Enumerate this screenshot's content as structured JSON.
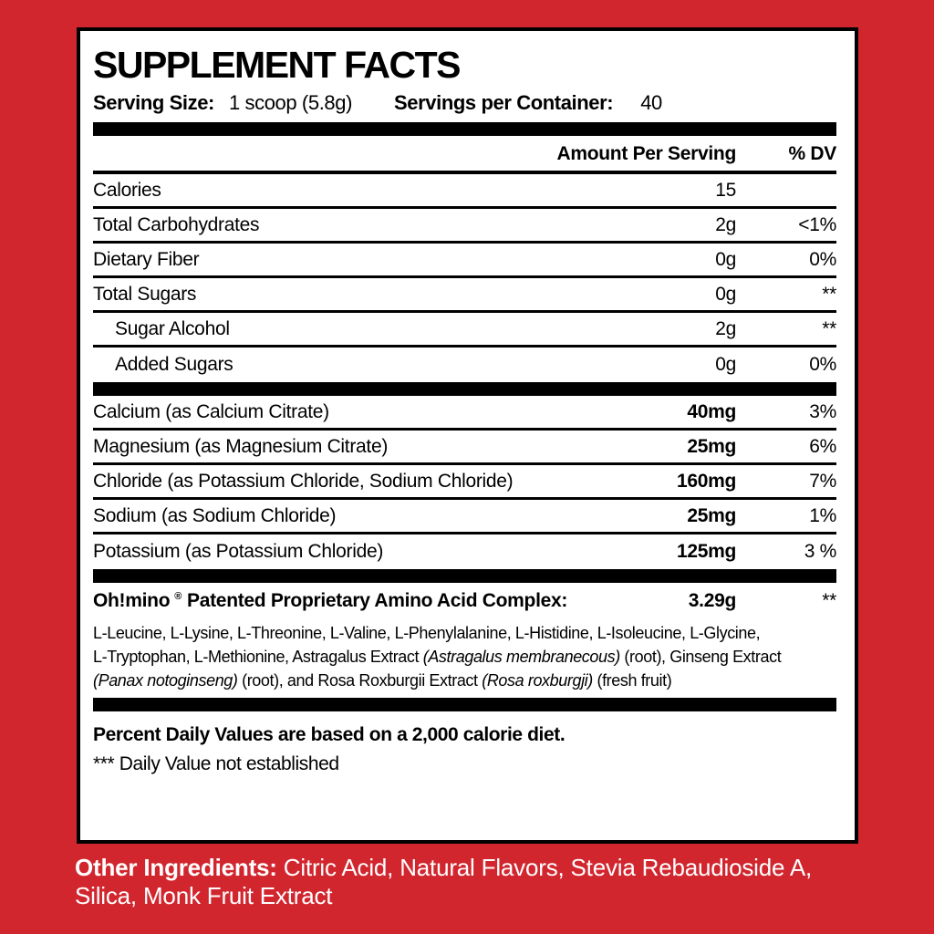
{
  "colors": {
    "background": "#d2262f",
    "panel": "#ffffff",
    "ink": "#000000",
    "inverse_text": "#ffffff"
  },
  "panel": {
    "title": "SUPPLEMENT FACTS",
    "serving": {
      "size_label": "Serving Size:",
      "size_value": "1 scoop (5.8g)",
      "count_label": "Servings per Container:",
      "count_value": "40"
    },
    "columns": {
      "amount": "Amount Per Serving",
      "dv": "% DV"
    },
    "basic_rows": [
      {
        "name": "Calories",
        "amount": "15",
        "dv": "",
        "indent": false,
        "bold_amount": false
      },
      {
        "name": "Total Carbohydrates",
        "amount": "2g",
        "dv": "<1%",
        "indent": false,
        "bold_amount": false
      },
      {
        "name": "Dietary Fiber",
        "amount": "0g",
        "dv": "0%",
        "indent": false,
        "bold_amount": false
      },
      {
        "name": "Total Sugars",
        "amount": "0g",
        "dv": "**",
        "indent": false,
        "bold_amount": false
      },
      {
        "name": "Sugar Alcohol",
        "amount": "2g",
        "dv": "**",
        "indent": true,
        "bold_amount": false
      },
      {
        "name": "Added Sugars",
        "amount": "0g",
        "dv": "0%",
        "indent": true,
        "bold_amount": false
      }
    ],
    "mineral_rows": [
      {
        "name": "Calcium (as Calcium Citrate)",
        "amount": "40mg",
        "dv": "3%",
        "indent": false,
        "bold_amount": true
      },
      {
        "name": "Magnesium (as Magnesium Citrate)",
        "amount": "25mg",
        "dv": "6%",
        "indent": false,
        "bold_amount": true
      },
      {
        "name": "Chloride (as Potassium Chloride, Sodium Chloride)",
        "amount": "160mg",
        "dv": "7%",
        "indent": false,
        "bold_amount": true
      },
      {
        "name": "Sodium (as Sodium Chloride)",
        "amount": "25mg",
        "dv": "1%",
        "indent": false,
        "bold_amount": true
      },
      {
        "name": "Potassium (as Potassium Chloride)",
        "amount": "125mg",
        "dv": "3 %",
        "indent": false,
        "bold_amount": true
      }
    ],
    "complex": {
      "brand": "Oh!mino",
      "reg_mark": "®",
      "title": "Patented Proprietary Amino Acid Complex:",
      "amount": "3.29g",
      "dv": "**",
      "ingredient_lines": [
        [
          {
            "text": "L-Leucine, L-Lysine, L-Threonine, L-Valine, L-Phenylalanine, L-Histidine, L-Isoleucine, L-Glycine,",
            "italic": false
          }
        ],
        [
          {
            "text": "L-Tryptophan, L-Methionine, Astragalus Extract ",
            "italic": false
          },
          {
            "text": "(Astragalus membranecous)",
            "italic": true
          },
          {
            "text": " (root), Ginseng Extract",
            "italic": false
          }
        ],
        [
          {
            "text": "(Panax notoginseng)",
            "italic": true
          },
          {
            "text": " (root), and Rosa Roxburgii Extract ",
            "italic": false
          },
          {
            "text": "(Rosa roxburgji)",
            "italic": true
          },
          {
            "text": " (fresh fruit)",
            "italic": false
          }
        ]
      ]
    },
    "footnotes": {
      "daily_values": "Percent Daily Values are based on a 2,000 calorie diet.",
      "not_established": "*** Daily Value not established"
    }
  },
  "other_ingredients": {
    "label": "Other Ingredients:",
    "text": " Citric Acid, Natural Flavors, Stevia Rebaudioside A, Silica, Monk Fruit Extract"
  }
}
